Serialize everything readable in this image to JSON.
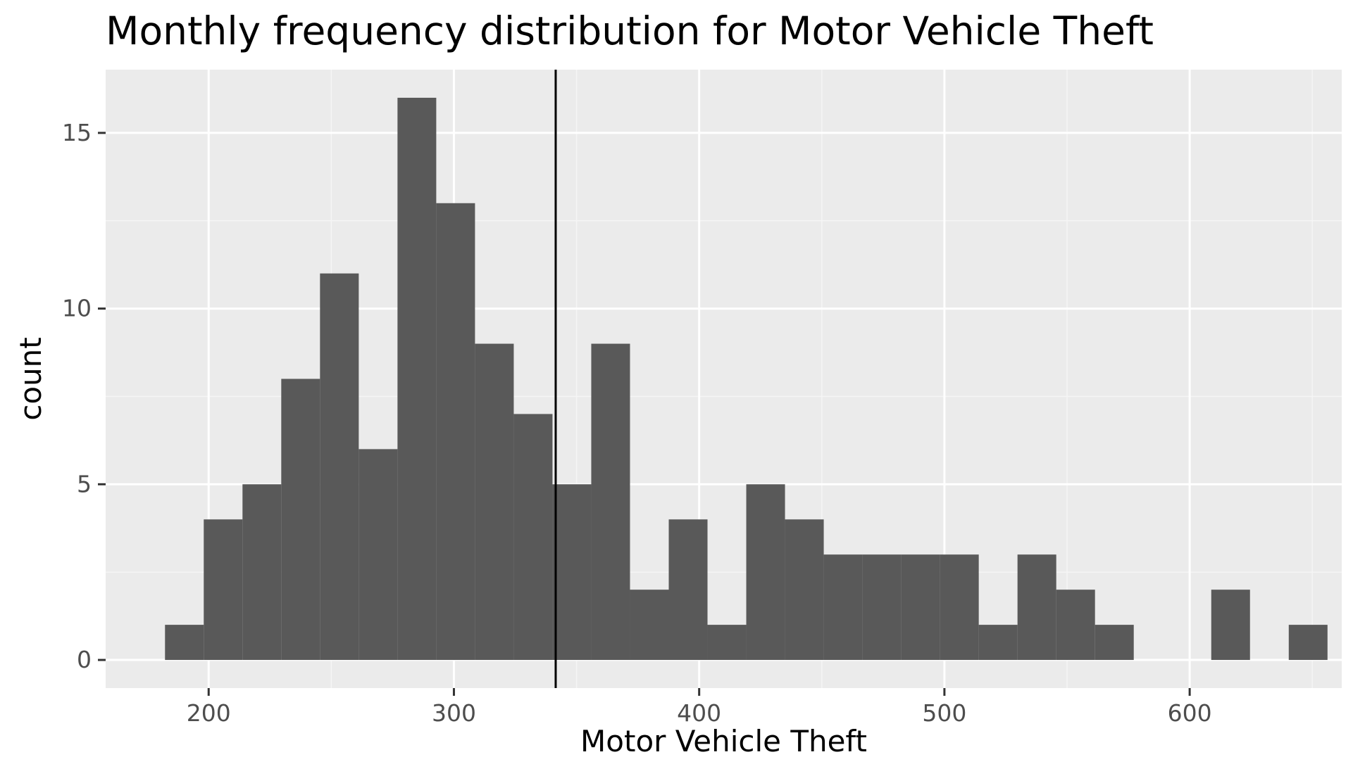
{
  "chart_data": {
    "type": "bar",
    "title": "Monthly frequency distribution for Motor Vehicle Theft",
    "xlabel": "Motor Vehicle Theft",
    "ylabel": "count",
    "xlim": [
      158,
      662
    ],
    "ylim": [
      -0.8,
      16.8
    ],
    "x_ticks": [
      200,
      300,
      400,
      500,
      600
    ],
    "y_ticks": [
      0,
      5,
      10,
      15
    ],
    "x_tick_labels": [
      "200",
      "300",
      "400",
      "500",
      "600"
    ],
    "y_tick_labels": [
      "0",
      "5",
      "10",
      "15"
    ],
    "grid": true,
    "legend": "none",
    "bin_width": 15.8,
    "bins": [
      {
        "start": 182.2,
        "end": 198.0,
        "count": 1
      },
      {
        "start": 198.0,
        "end": 213.8,
        "count": 4
      },
      {
        "start": 213.8,
        "end": 229.6,
        "count": 5
      },
      {
        "start": 229.6,
        "end": 245.4,
        "count": 8
      },
      {
        "start": 245.4,
        "end": 261.2,
        "count": 11
      },
      {
        "start": 261.2,
        "end": 277.0,
        "count": 6
      },
      {
        "start": 277.0,
        "end": 292.8,
        "count": 16
      },
      {
        "start": 292.8,
        "end": 308.6,
        "count": 13
      },
      {
        "start": 308.6,
        "end": 324.4,
        "count": 9
      },
      {
        "start": 324.4,
        "end": 340.2,
        "count": 7
      },
      {
        "start": 340.2,
        "end": 356.0,
        "count": 5
      },
      {
        "start": 356.0,
        "end": 371.8,
        "count": 9
      },
      {
        "start": 371.8,
        "end": 387.6,
        "count": 2
      },
      {
        "start": 387.6,
        "end": 403.4,
        "count": 4
      },
      {
        "start": 403.4,
        "end": 419.2,
        "count": 1
      },
      {
        "start": 419.2,
        "end": 435.0,
        "count": 5
      },
      {
        "start": 435.0,
        "end": 450.8,
        "count": 4
      },
      {
        "start": 450.8,
        "end": 466.6,
        "count": 3
      },
      {
        "start": 466.6,
        "end": 482.4,
        "count": 3
      },
      {
        "start": 482.4,
        "end": 498.2,
        "count": 3
      },
      {
        "start": 498.2,
        "end": 514.0,
        "count": 3
      },
      {
        "start": 514.0,
        "end": 529.8,
        "count": 1
      },
      {
        "start": 529.8,
        "end": 545.6,
        "count": 3
      },
      {
        "start": 545.6,
        "end": 561.4,
        "count": 2
      },
      {
        "start": 561.4,
        "end": 577.2,
        "count": 1
      },
      {
        "start": 577.2,
        "end": 593.0,
        "count": 0
      },
      {
        "start": 593.0,
        "end": 608.8,
        "count": 0
      },
      {
        "start": 608.8,
        "end": 624.6,
        "count": 2
      },
      {
        "start": 624.6,
        "end": 640.4,
        "count": 0
      },
      {
        "start": 640.4,
        "end": 656.2,
        "count": 1
      }
    ],
    "reference_line_x": 341.5,
    "colors": {
      "bar_fill": "#595959",
      "panel_background": "#ebebeb",
      "grid_major": "#ffffff",
      "grid_minor": "#f5f5f5",
      "reference_line": "#000000",
      "tick_text": "#4d4d4d",
      "tick_mark": "#333333"
    }
  }
}
